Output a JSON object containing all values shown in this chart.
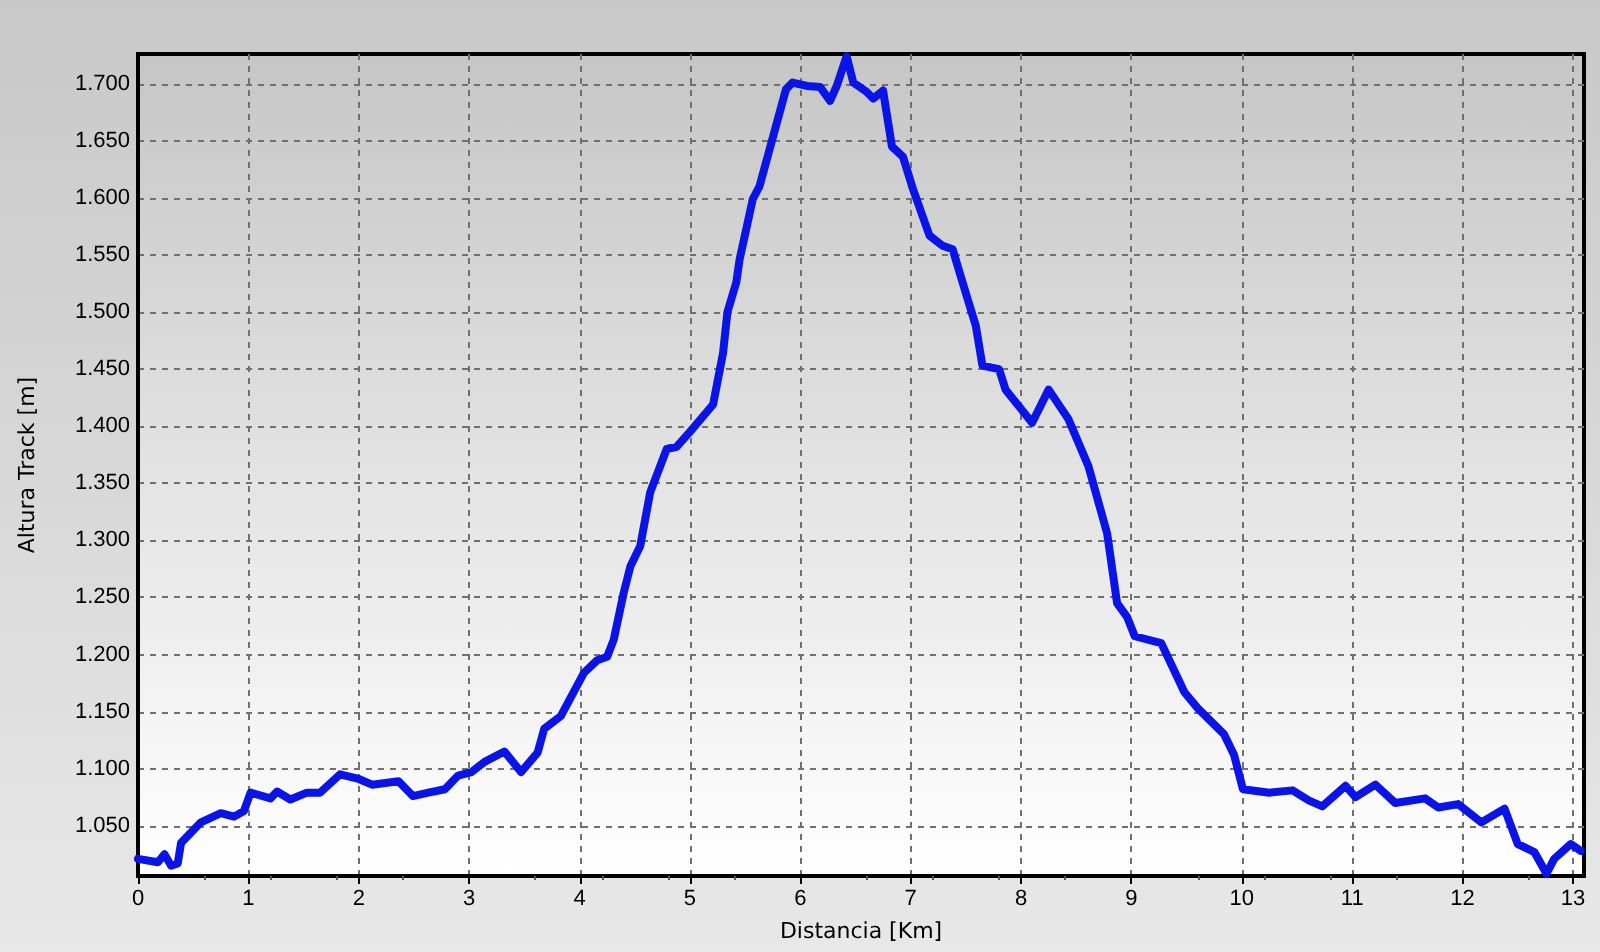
{
  "chart_data": {
    "type": "line",
    "xlabel": "Distancia [Km]",
    "ylabel": "Altura Track [m]",
    "x": [
      0,
      0.18,
      0.24,
      0.3,
      0.36,
      0.39,
      0.57,
      0.75,
      0.87,
      0.96,
      1.02,
      1.2,
      1.26,
      1.38,
      1.53,
      1.65,
      1.83,
      2.0,
      2.12,
      2.36,
      2.49,
      2.63,
      2.78,
      2.9,
      3.02,
      3.14,
      3.32,
      3.47,
      3.62,
      3.68,
      3.83,
      4.04,
      4.16,
      4.25,
      4.31,
      4.4,
      4.46,
      4.55,
      4.64,
      4.79,
      4.88,
      5.0,
      5.21,
      5.3,
      5.34,
      5.42,
      5.45,
      5.57,
      5.63,
      5.87,
      5.93,
      6.06,
      6.18,
      6.27,
      6.33,
      6.42,
      6.48,
      6.6,
      6.66,
      6.75,
      6.83,
      6.93,
      7.02,
      7.17,
      7.29,
      7.38,
      7.47,
      7.59,
      7.65,
      7.8,
      7.86,
      8.1,
      8.25,
      8.43,
      8.61,
      8.78,
      8.87,
      8.96,
      9.03,
      9.27,
      9.48,
      9.6,
      9.84,
      9.93,
      10.01,
      10.25,
      10.46,
      10.61,
      10.73,
      10.94,
      11.03,
      11.21,
      11.39,
      11.66,
      11.78,
      11.96,
      12.17,
      12.38,
      12.5,
      12.65,
      12.76,
      12.83,
      12.98,
      13.07
    ],
    "series": [
      {
        "color": "#0a14e6",
        "values": [
          1021,
          1018,
          1025,
          1015,
          1017,
          1035,
          1053,
          1061,
          1058,
          1063,
          1079,
          1074,
          1080,
          1073,
          1079,
          1079,
          1095,
          1091,
          1086,
          1089,
          1076,
          1079,
          1082,
          1094,
          1097,
          1106,
          1115,
          1097,
          1114,
          1135,
          1146,
          1184,
          1195,
          1198,
          1213,
          1254,
          1277,
          1295,
          1342,
          1380,
          1382,
          1395,
          1419,
          1464,
          1500,
          1526,
          1546,
          1599,
          1610,
          1695,
          1701,
          1698,
          1697,
          1685,
          1698,
          1724,
          1701,
          1693,
          1687,
          1694,
          1645,
          1636,
          1608,
          1567,
          1558,
          1555,
          1526,
          1488,
          1453,
          1450,
          1432,
          1403,
          1432,
          1406,
          1365,
          1306,
          1245,
          1233,
          1216,
          1210,
          1167,
          1153,
          1130,
          1112,
          1082,
          1079,
          1081,
          1072,
          1067,
          1085,
          1075,
          1086,
          1070,
          1074,
          1066,
          1069,
          1053,
          1065,
          1034,
          1027,
          1008,
          1021,
          1034,
          1028
        ]
      }
    ],
    "xlim": [
      0,
      13.1
    ],
    "xticks": [
      0,
      1,
      2,
      3,
      4,
      5,
      6,
      7,
      8,
      9,
      10,
      11,
      12,
      13
    ],
    "ylim": [
      1006,
      1726
    ],
    "yticks": [
      {
        "value": 1050,
        "label": "1.050"
      },
      {
        "value": 1100,
        "label": "1.100"
      },
      {
        "value": 1150,
        "label": "1.150"
      },
      {
        "value": 1200,
        "label": "1.200"
      },
      {
        "value": 1250,
        "label": "1.250"
      },
      {
        "value": 1300,
        "label": "1.300"
      },
      {
        "value": 1350,
        "label": "1.350"
      },
      {
        "value": 1400,
        "label": "1.400"
      },
      {
        "value": 1450,
        "label": "1.450"
      },
      {
        "value": 1500,
        "label": "1.500"
      },
      {
        "value": 1550,
        "label": "1.550"
      },
      {
        "value": 1600,
        "label": "1.600"
      },
      {
        "value": 1650,
        "label": "1.650"
      },
      {
        "value": 1700,
        "label": "1.700"
      }
    ],
    "grid": true,
    "marker": "none",
    "line_style": "solid"
  }
}
